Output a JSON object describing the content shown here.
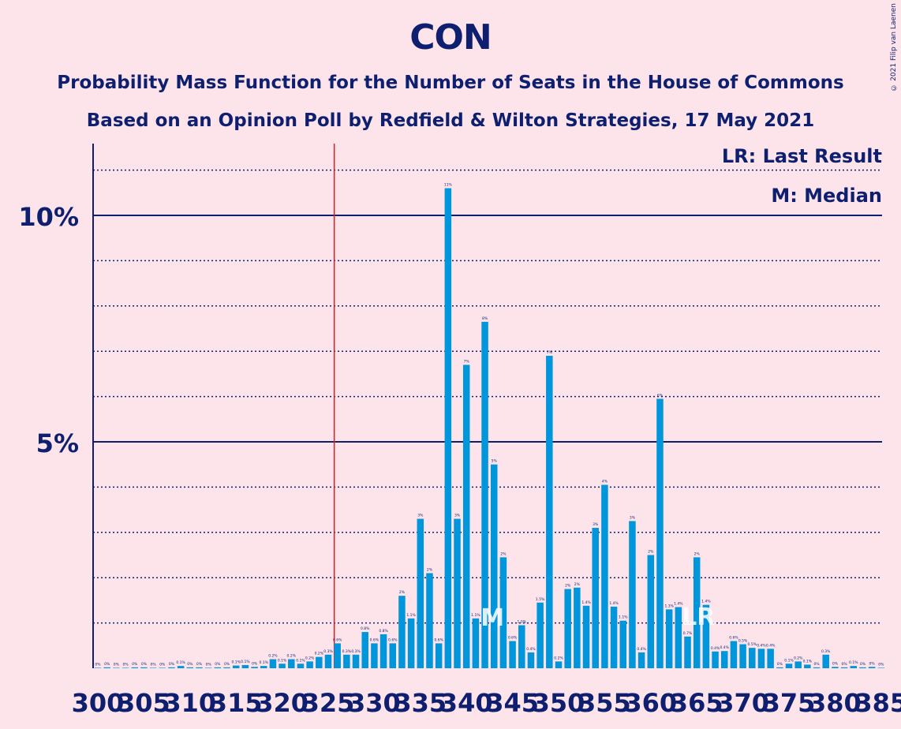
{
  "chart_data": {
    "type": "bar",
    "title": "CON",
    "subtitle_1": "Probability Mass Function for the Number of Seats in the House of Commons",
    "subtitle_2": "Based on an Opinion Poll by Redfield & Wilton Strategies, 17 May 2021",
    "copyright": "© 2021 Filip van Laenen",
    "legend": {
      "last_result": "LR: Last Result",
      "median": "M: Median",
      "placement": "top-right"
    },
    "y_ticks": [
      {
        "value": 5,
        "label": "5%"
      },
      {
        "value": 10,
        "label": "10%"
      }
    ],
    "ylim": [
      0,
      11.5
    ],
    "x_ticks": [
      300,
      305,
      310,
      315,
      320,
      325,
      330,
      335,
      340,
      345,
      350,
      355,
      360,
      365,
      370,
      375,
      380,
      385
    ],
    "majority_line": 326,
    "last_result_seat": 365,
    "median_seat": 343,
    "last_result_marker": "LR",
    "median_marker": "M",
    "x": [
      300,
      301,
      302,
      303,
      304,
      305,
      306,
      307,
      308,
      309,
      310,
      311,
      312,
      313,
      314,
      315,
      316,
      317,
      318,
      319,
      320,
      321,
      322,
      323,
      324,
      325,
      326,
      327,
      328,
      329,
      330,
      331,
      332,
      333,
      334,
      335,
      336,
      337,
      338,
      339,
      340,
      341,
      342,
      343,
      344,
      345,
      346,
      347,
      348,
      349,
      350,
      351,
      352,
      353,
      354,
      355,
      356,
      357,
      358,
      359,
      360,
      361,
      362,
      363,
      364,
      365,
      366,
      367,
      368,
      369,
      370,
      371,
      372,
      373,
      374,
      375,
      376,
      377,
      378,
      379,
      380,
      381,
      382,
      383,
      384,
      385
    ],
    "values": [
      0.01,
      0.02,
      0.01,
      0.01,
      0.02,
      0.02,
      0.01,
      0.01,
      0.02,
      0.05,
      0.02,
      0.02,
      0.01,
      0.02,
      0.02,
      0.06,
      0.07,
      0.03,
      0.05,
      0.2,
      0.1,
      0.2,
      0.1,
      0.15,
      0.25,
      0.3,
      0.55,
      0.3,
      0.3,
      0.8,
      0.55,
      0.75,
      0.55,
      1.6,
      1.1,
      3.3,
      2.1,
      0.55,
      10.6,
      3.3,
      6.7,
      1.1,
      7.65,
      4.5,
      2.45,
      0.6,
      0.95,
      0.35,
      1.45,
      6.9,
      0.15,
      1.75,
      1.78,
      1.38,
      3.1,
      4.05,
      1.36,
      1.05,
      3.25,
      0.35,
      2.5,
      5.95,
      1.3,
      1.35,
      0.7,
      2.45,
      1.4,
      0.37,
      0.38,
      0.6,
      0.53,
      0.45,
      0.43,
      0.43,
      0.02,
      0.1,
      0.15,
      0.08,
      0.02,
      0.3,
      0.03,
      0.02,
      0.05,
      0.02,
      0.03,
      0.01
    ],
    "labels": [
      "0%",
      "0%",
      "0%",
      "0%",
      "0%",
      "0%",
      "0%",
      "0%",
      "0%",
      "0.1%",
      "0%",
      "0%",
      "0%",
      "0%",
      "0%",
      "0.1%",
      "0.1%",
      "0%",
      "0.1%",
      "0.2%",
      "0.1%",
      "0.2%",
      "0.1%",
      "0.2%",
      "0.2%",
      "0.3%",
      "0.6%",
      "0.3%",
      "0.3%",
      "0.8%",
      "0.6%",
      "0.8%",
      "0.6%",
      "2%",
      "1.1%",
      "3%",
      "2%",
      "0.6%",
      "11%",
      "3%",
      "7%",
      "1.1%",
      "8%",
      "5%",
      "2%",
      "0.6%",
      "1.0%",
      "0.4%",
      "1.5%",
      "7%",
      "0.2%",
      "2%",
      "2%",
      "1.4%",
      "3%",
      "4%",
      "1.4%",
      "1.1%",
      "3%",
      "0.4%",
      "2%",
      "6%",
      "1.3%",
      "1.4%",
      "0.7%",
      "2%",
      "1.4%",
      "0.4%",
      "0.4%",
      "0.6%",
      "0.5%",
      "0.5%",
      "0.4%",
      "0.4%",
      "0%",
      "0.1%",
      "0.2%",
      "0.1%",
      "0%",
      "0.3%",
      "0%",
      "0%",
      "0.1%",
      "0%",
      "0%",
      "0%"
    ],
    "colors": {
      "bar": "#0096dc",
      "axis": "#0d1f6e",
      "majority": "#e0201b",
      "background": "#fde3ea"
    }
  }
}
